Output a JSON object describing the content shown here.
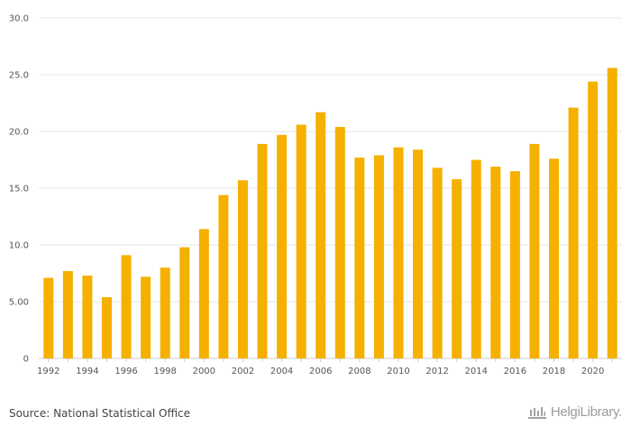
{
  "chart_data": {
    "type": "bar",
    "categories": [
      "1992",
      "1993",
      "1994",
      "1995",
      "1996",
      "1997",
      "1998",
      "1999",
      "2000",
      "2001",
      "2002",
      "2003",
      "2004",
      "2005",
      "2006",
      "2007",
      "2008",
      "2009",
      "2010",
      "2011",
      "2012",
      "2013",
      "2014",
      "2015",
      "2016",
      "2017",
      "2018",
      "2019",
      "2020",
      "2021"
    ],
    "values": [
      7.1,
      7.7,
      7.3,
      5.4,
      9.1,
      7.2,
      8.0,
      9.8,
      11.4,
      14.4,
      15.7,
      18.9,
      19.7,
      20.6,
      21.7,
      20.4,
      17.7,
      17.9,
      18.6,
      18.4,
      16.8,
      15.8,
      17.5,
      16.9,
      16.5,
      18.9,
      17.6,
      22.1,
      24.4,
      25.6
    ],
    "title": "",
    "xlabel": "",
    "ylabel": "",
    "ylim": [
      0,
      30
    ],
    "yticks": [
      0,
      5,
      10,
      15,
      20,
      25,
      30
    ],
    "ytick_labels": [
      "0",
      "5.00",
      "10.0",
      "15.0",
      "20.0",
      "25.0",
      "30.0"
    ],
    "xtick_labels": [
      "1992",
      "1994",
      "1996",
      "1998",
      "2000",
      "2002",
      "2004",
      "2006",
      "2008",
      "2010",
      "2012",
      "2014",
      "2016",
      "2018",
      "2020"
    ],
    "grid": true,
    "bar_color": "#F5B000",
    "grid_color": "#E6E6E6"
  },
  "footer": {
    "source": "Source: National Statistical Office",
    "brand": "HelgiLibrary."
  }
}
